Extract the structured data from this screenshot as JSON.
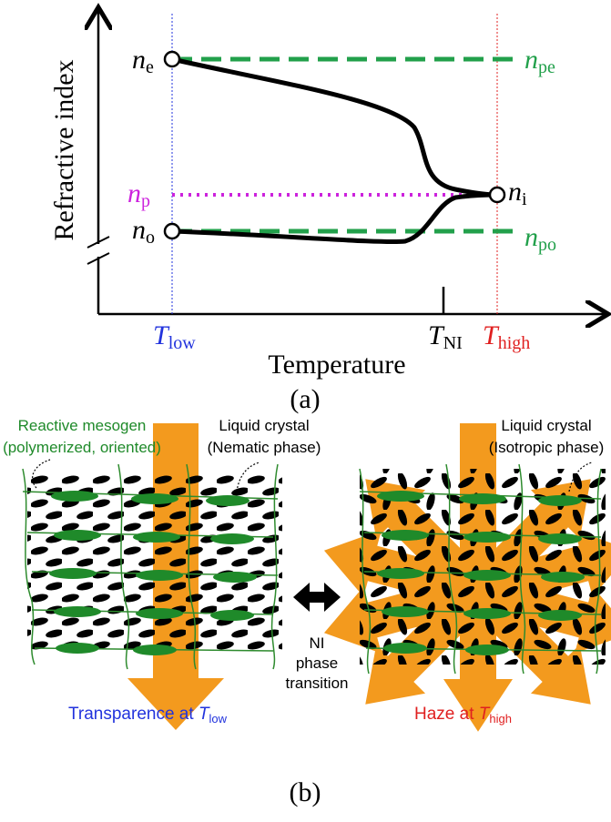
{
  "panel_a": {
    "y_axis_label": "Refractive index",
    "x_axis_label": "Temperature",
    "caption": "(a)",
    "n_e": {
      "symbol": "n",
      "subscript": "e"
    },
    "n_pe": {
      "symbol": "n",
      "subscript": "pe"
    },
    "n_p": {
      "symbol": "n",
      "subscript": "p"
    },
    "n_i": {
      "symbol": "n",
      "subscript": "i"
    },
    "n_o": {
      "symbol": "n",
      "subscript": "o"
    },
    "n_po": {
      "symbol": "n",
      "subscript": "po"
    },
    "T_low": {
      "symbol": "T",
      "subscript": "low"
    },
    "T_NI": {
      "symbol": "T",
      "subscript": "NI"
    },
    "T_high": {
      "symbol": "T",
      "subscript": "high"
    }
  },
  "panel_b": {
    "reactive_mesogen": [
      "Reactive mesogen",
      "(polymerized, oriented)"
    ],
    "liquid_crystal_nematic": [
      "Liquid crystal",
      "(Nematic phase)"
    ],
    "liquid_crystal_isotropic": [
      "Liquid crystal",
      "(Isotropic phase)"
    ],
    "transition": [
      "NI",
      "phase",
      "transition"
    ],
    "left_caption": {
      "text": "Transparence at ",
      "symbol": "T",
      "subscript": "low"
    },
    "right_caption": {
      "text": "Haze at ",
      "symbol": "T",
      "subscript": "high"
    },
    "caption": "(b)"
  }
}
